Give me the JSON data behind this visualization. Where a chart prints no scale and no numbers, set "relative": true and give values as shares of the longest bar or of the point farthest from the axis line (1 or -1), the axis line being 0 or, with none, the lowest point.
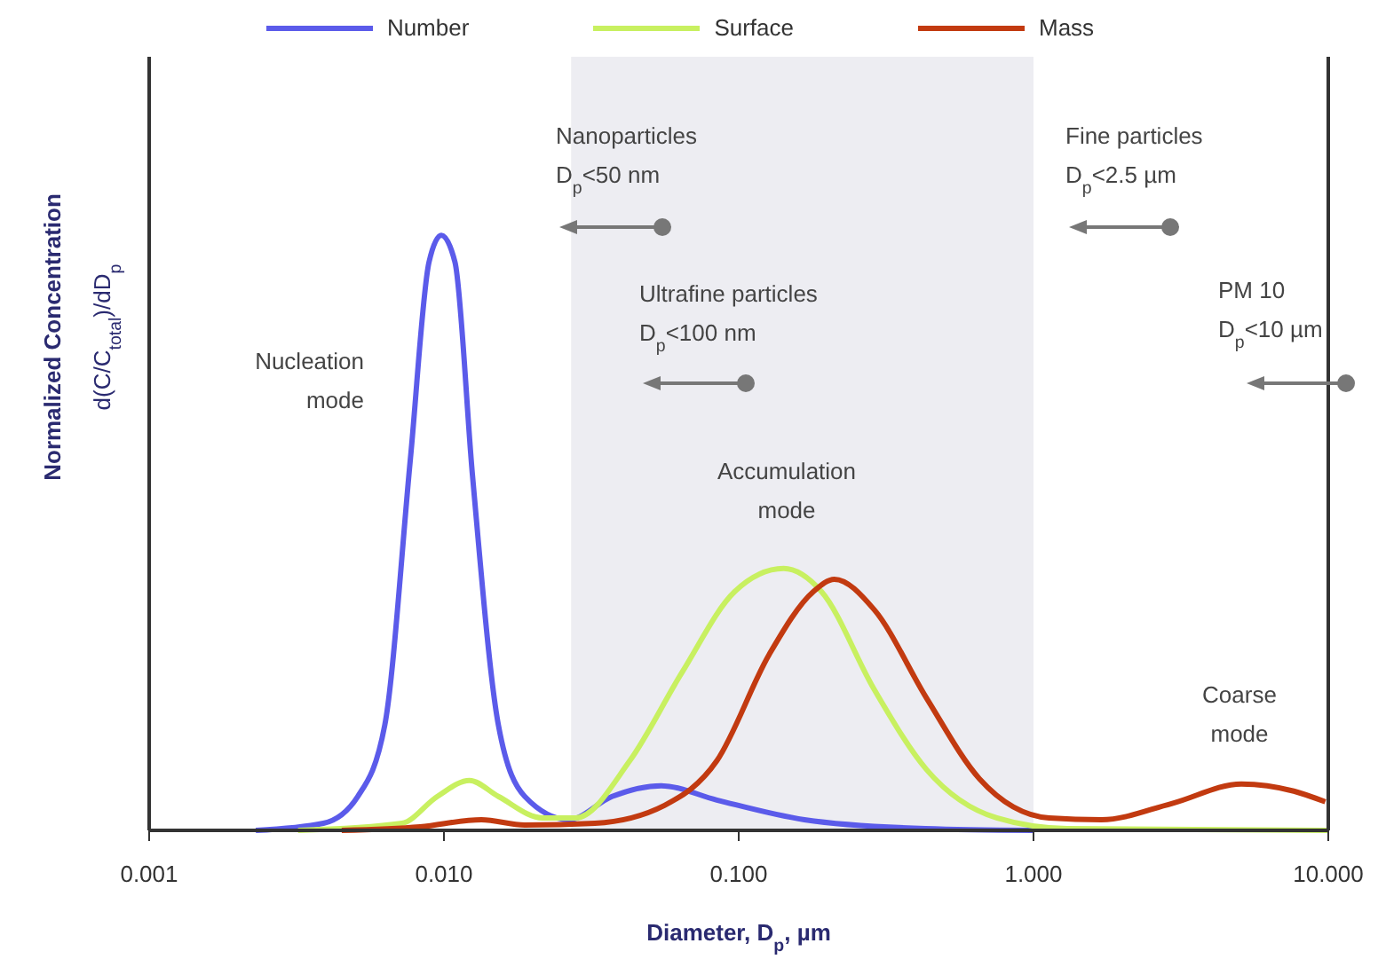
{
  "chart_data": {
    "type": "line",
    "relative": true,
    "log": "x",
    "legend": "top",
    "xlabel": "Diameter, D$_{p}$, µm",
    "ylabel": "Normalized Concentration\nd(C/C$_{total}$)/dD$_{p}$",
    "xlim": [
      0.001,
      10
    ],
    "xticks": [
      {
        "value": 0.001,
        "label": "0.001"
      },
      {
        "value": 0.01,
        "label": "0.010"
      },
      {
        "value": 0.1,
        "label": "0.100"
      },
      {
        "value": 1,
        "label": "1.000"
      },
      {
        "value": 10,
        "label": "10.000"
      }
    ],
    "bands": [
      {
        "axis": "x",
        "from": 0.027,
        "to": 1,
        "color": "#ededf2"
      }
    ],
    "annotations": [
      "Nanoparticles\nD$_{p}$<50 nm",
      "Ultrafine particles\nD$_{p}$<100 nm",
      "Fine particles\nD$_{p}$<2.5 µm",
      "PM 10\nD$_{p}$<10 µm",
      "Nucleation\nmode",
      "Accumulation\nmode",
      "Coarse\nmode"
    ],
    "series": [
      {
        "name": "Number",
        "color": "#5b5bea",
        "x": [
          0.0023,
          0.0039,
          0.0051,
          0.0063,
          0.0077,
          0.0089,
          0.0098,
          0.0109,
          0.0125,
          0.0153,
          0.0188,
          0.0265,
          0.0372,
          0.0546,
          0.0843,
          0.167,
          0.43,
          1
        ],
        "values": [
          0,
          0.012,
          0.057,
          0.177,
          0.626,
          0.955,
          1,
          0.955,
          0.596,
          0.177,
          0.057,
          0.018,
          0.057,
          0.075,
          0.051,
          0.018,
          0.003,
          0
        ]
      },
      {
        "name": "Surface",
        "color": "#c8f060",
        "x": [
          0.0032,
          0.0072,
          0.0095,
          0.0122,
          0.0153,
          0.0216,
          0.028,
          0.0427,
          0.0643,
          0.0968,
          0.142,
          0.191,
          0.288,
          0.434,
          0.75,
          1.3,
          10
        ],
        "values": [
          0,
          0.012,
          0.057,
          0.084,
          0.057,
          0.021,
          0.021,
          0.117,
          0.266,
          0.401,
          0.44,
          0.401,
          0.237,
          0.102,
          0.021,
          0.003,
          0
        ]
      },
      {
        "name": "Mass",
        "color": "#c23a10",
        "x": [
          0.0045,
          0.0083,
          0.0134,
          0.0188,
          0.0325,
          0.056,
          0.0843,
          0.127,
          0.179,
          0.211,
          0.288,
          0.434,
          0.655,
          1.13,
          1.7,
          2.94,
          5.07,
          7.64,
          9.77
        ],
        "values": [
          0,
          0.006,
          0.018,
          0.009,
          0.012,
          0.042,
          0.117,
          0.296,
          0.401,
          0.422,
          0.371,
          0.222,
          0.087,
          0.021,
          0.018,
          0.045,
          0.078,
          0.066,
          0.048
        ]
      }
    ]
  }
}
